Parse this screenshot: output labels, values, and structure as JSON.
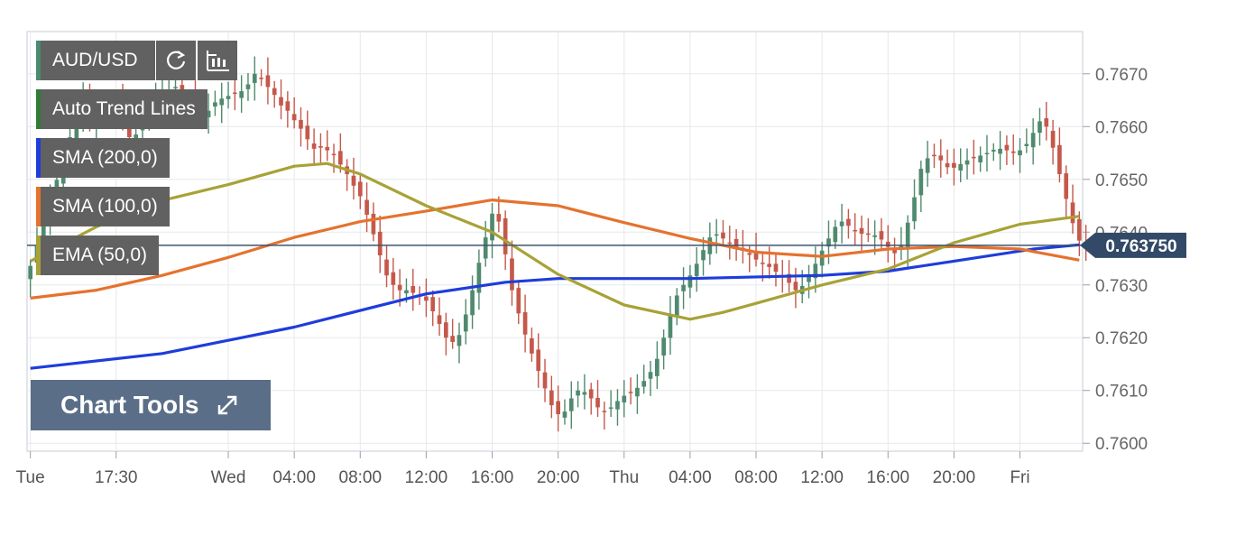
{
  "legend": {
    "symbol": "AUD/USD",
    "items": [
      {
        "label": "Auto Trend Lines",
        "color": "#2e7d32"
      },
      {
        "label": "SMA (200,0)",
        "color": "#1e3ddb"
      },
      {
        "label": "SMA (100,0)",
        "color": "#e5722e"
      },
      {
        "label": "EMA (50,0)",
        "color": "#a8a237"
      }
    ],
    "symbol_color": "#4a8a70"
  },
  "icons": {
    "refresh": "refresh-icon",
    "candles": "candlestick-icon",
    "expand": "expand-icon"
  },
  "chart_tools_label": "Chart Tools",
  "chart_data": {
    "type": "candlestick",
    "title": "",
    "xlabel": "",
    "ylabel": "",
    "ylim": [
      0.75985,
      0.7678
    ],
    "y_ticks": [
      "0.7600",
      "0.7610",
      "0.7620",
      "0.7630",
      "0.7640",
      "0.7650",
      "0.7660",
      "0.7670"
    ],
    "x_ticks": [
      "Tue",
      "17:30",
      "Wed",
      "04:00",
      "08:00",
      "12:00",
      "16:00",
      "20:00",
      "Thu",
      "04:00",
      "08:00",
      "12:00",
      "16:00",
      "20:00",
      "Fri"
    ],
    "x_tick_candle_index": [
      0,
      13,
      30,
      40,
      50,
      60,
      70,
      80,
      90,
      100,
      110,
      120,
      130,
      140,
      150
    ],
    "current_price": "0.763750",
    "current_price_value": 0.76375,
    "up_color": "#4f8a6e",
    "down_color": "#c5584a",
    "candle_count": 160,
    "closes": [
      0.76336,
      0.76376,
      0.76418,
      0.76458,
      0.76499,
      0.76541,
      0.7658,
      0.76618,
      0.76653,
      0.76617,
      0.76623,
      0.76628,
      0.76634,
      0.76642,
      0.76622,
      0.7658,
      0.76585,
      0.76612,
      0.76635,
      0.76654,
      0.76666,
      0.7667,
      0.76675,
      0.76655,
      0.76647,
      0.76628,
      0.76623,
      0.7663,
      0.76646,
      0.76653,
      0.76658,
      0.76662,
      0.76667,
      0.7668,
      0.767,
      0.7669,
      0.76675,
      0.7666,
      0.7664,
      0.7663,
      0.76612,
      0.76596,
      0.76576,
      0.76558,
      0.7656,
      0.76555,
      0.76546,
      0.76528,
      0.7651,
      0.76488,
      0.76468,
      0.76433,
      0.76396,
      0.76356,
      0.76318,
      0.763,
      0.7629,
      0.7629,
      0.76285,
      0.7628,
      0.7627,
      0.7625,
      0.76226,
      0.762,
      0.76192,
      0.76205,
      0.76244,
      0.7629,
      0.76342,
      0.7639,
      0.76435,
      0.7642,
      0.76358,
      0.7629,
      0.76246,
      0.76206,
      0.7617,
      0.76137,
      0.76104,
      0.76072,
      0.76055,
      0.7606,
      0.76085,
      0.761,
      0.76097,
      0.76085,
      0.76068,
      0.7606,
      0.76068,
      0.7608,
      0.7609,
      0.76096,
      0.76105,
      0.76118,
      0.76135,
      0.7616,
      0.762,
      0.76245,
      0.7628,
      0.763,
      0.76318,
      0.7634,
      0.76366,
      0.7639,
      0.76396,
      0.76388,
      0.7638,
      0.76372,
      0.76365,
      0.76357,
      0.76348,
      0.7634,
      0.76334,
      0.76325,
      0.76316,
      0.76304,
      0.7629,
      0.76298,
      0.76316,
      0.7634,
      0.76365,
      0.76388,
      0.7641,
      0.7642,
      0.76412,
      0.76402,
      0.76397,
      0.76397,
      0.76394,
      0.76386,
      0.76372,
      0.7636,
      0.76376,
      0.76418,
      0.76466,
      0.7652,
      0.7654,
      0.76546,
      0.76536,
      0.76523,
      0.76522,
      0.76529,
      0.76536,
      0.7654,
      0.76545,
      0.7655,
      0.76556,
      0.76558,
      0.76555,
      0.7655,
      0.76555,
      0.76567,
      0.76588,
      0.7661,
      0.766,
      0.7656,
      0.7651,
      0.76463,
      0.76417,
      0.76384,
      0.76375
    ],
    "series": [
      {
        "name": "SMA (200,0)",
        "type": "line",
        "color": "#1e3ddb",
        "x": [
          0,
          20,
          40,
          60,
          72,
          80,
          100,
          120,
          130,
          140,
          152,
          159
        ],
        "values": [
          0.76142,
          0.7617,
          0.7622,
          0.76283,
          0.76305,
          0.76312,
          0.76312,
          0.76318,
          0.76326,
          0.76345,
          0.76368,
          0.76376
        ]
      },
      {
        "name": "SMA (100,0)",
        "type": "line",
        "color": "#e5722e",
        "x": [
          0,
          10,
          20,
          30,
          40,
          50,
          60,
          70,
          80,
          90,
          100,
          110,
          120,
          130,
          140,
          150,
          159
        ],
        "values": [
          0.76275,
          0.7629,
          0.76318,
          0.76352,
          0.7639,
          0.7642,
          0.7644,
          0.76461,
          0.7645,
          0.76418,
          0.76388,
          0.76362,
          0.76354,
          0.76368,
          0.76373,
          0.76368,
          0.76347
        ]
      },
      {
        "name": "EMA (50,0)",
        "type": "line",
        "color": "#a8a237",
        "x": [
          0,
          10,
          20,
          30,
          40,
          45,
          50,
          60,
          70,
          80,
          90,
          100,
          105,
          110,
          120,
          130,
          140,
          150,
          159
        ],
        "values": [
          0.76345,
          0.7641,
          0.7646,
          0.7649,
          0.76525,
          0.7653,
          0.7651,
          0.7645,
          0.764,
          0.7632,
          0.76262,
          0.76235,
          0.76248,
          0.76265,
          0.763,
          0.7633,
          0.7638,
          0.76415,
          0.7643
        ]
      }
    ]
  }
}
